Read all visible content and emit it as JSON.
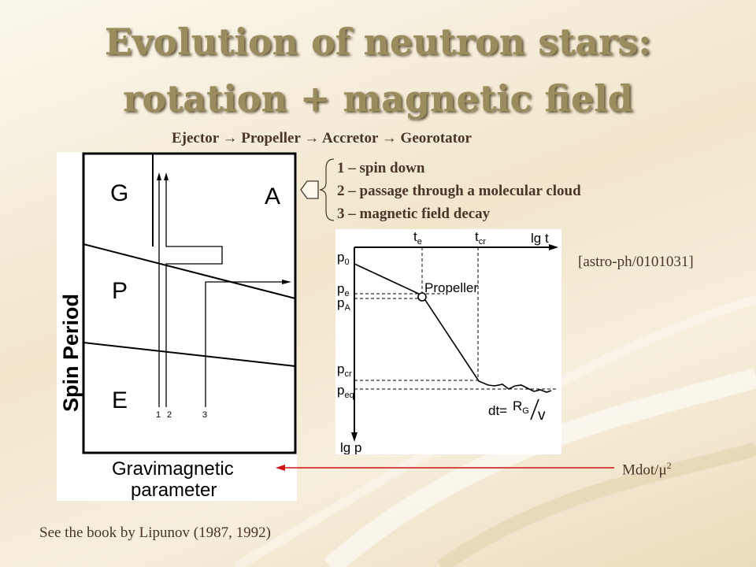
{
  "slide": {
    "title_line1": "Evolution of neutron stars:",
    "title_line2": "rotation + magnetic field",
    "subtitle": "Ejector → Propeller → Accretor → Georotator",
    "legend": [
      "1 – spin down",
      "2 – passage through a molecular cloud",
      "3 – magnetic field decay"
    ],
    "reference": "[astro-ph/0101031]",
    "mdot_label": "Mdot/μ",
    "mdot_exponent": "2",
    "footer": "See the book by Lipunov (1987, 1992)"
  },
  "left_diagram": {
    "ylabel": "Spin Period",
    "xlabel_line1": "Gravimagnetic",
    "xlabel_line2": "parameter",
    "regions": [
      "G",
      "A",
      "P",
      "E"
    ],
    "track_labels": [
      "1",
      "2",
      "3"
    ]
  },
  "right_diagram": {
    "x_axis": "lg t",
    "y_axis": "lg p",
    "time_labels": [
      {
        "main": "t",
        "sub": "e"
      },
      {
        "main": "t",
        "sub": "cr"
      }
    ],
    "period_labels": [
      {
        "main": "p",
        "sub": "0"
      },
      {
        "main": "p",
        "sub": "e"
      },
      {
        "main": "p",
        "sub": "A"
      },
      {
        "main": "p",
        "sub": "cr"
      },
      {
        "main": "p",
        "sub": "eq"
      }
    ],
    "propeller_label": "Propeller",
    "formula": {
      "lhs": "dt=",
      "num_main": "R",
      "num_sub": "G",
      "den": "v"
    }
  },
  "colors": {
    "arrow": "#cc1111",
    "text": "#4a3528",
    "title": "#9a8c5c"
  }
}
